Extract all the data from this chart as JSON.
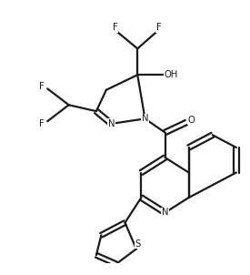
{
  "background": "#ffffff",
  "line_color": "#1a1a1a",
  "line_width": 1.6,
  "fig_width": 2.75,
  "fig_height": 3.02,
  "dpi": 100,
  "xlim": [
    0,
    10
  ],
  "ylim": [
    0,
    10
  ]
}
